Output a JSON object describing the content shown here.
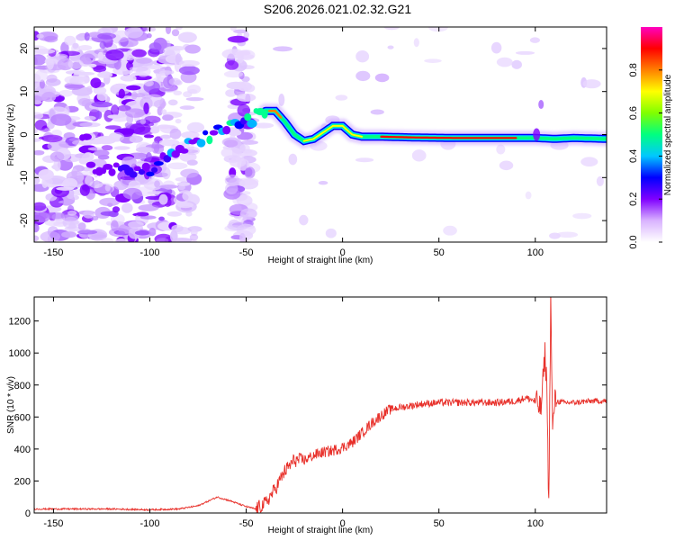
{
  "title": "S206.2026.021.02.32.G21",
  "chart_data": [
    {
      "type": "heatmap",
      "name": "spectrogram",
      "xlabel": "Height of straight line (km)",
      "ylabel": "Frequency (Hz)",
      "xlim": [
        -160,
        137
      ],
      "ylim": [
        -25,
        25
      ],
      "xticks": [
        -150,
        -100,
        -50,
        0,
        50,
        100
      ],
      "xtick_labels": [
        "-150",
        "-100",
        "-50",
        "0",
        "50",
        "100"
      ],
      "yticks": [
        20,
        10,
        0,
        -10,
        -20
      ],
      "ytick_labels": [
        "20",
        "10",
        "0",
        "-10",
        "-20"
      ],
      "colorbar": {
        "label": "Normalized spectral amplitude",
        "range": [
          0,
          1
        ],
        "ticks": [
          0.0,
          0.2,
          0.4,
          0.6,
          0.8
        ],
        "tick_labels": [
          "0.0",
          "0.2",
          "0.4",
          "0.6",
          "0.8"
        ],
        "colors": [
          "#ffffff",
          "#d9b3ff",
          "#8000ff",
          "#0000ff",
          "#00c8ff",
          "#00ff80",
          "#80ff00",
          "#ffff00",
          "#ff8000",
          "#ff0000",
          "#ff00c0"
        ]
      },
      "ridge_points": [
        {
          "x": -132,
          "f": -7.5
        },
        {
          "x": -120,
          "f": -7.5
        },
        {
          "x": -110,
          "f": -9
        },
        {
          "x": -100,
          "f": -8
        },
        {
          "x": -90,
          "f": -5
        },
        {
          "x": -80,
          "f": -2.5
        },
        {
          "x": -70,
          "f": -0.5
        },
        {
          "x": -60,
          "f": 1.5
        },
        {
          "x": -50,
          "f": 3
        },
        {
          "x": -40,
          "f": 5.5
        },
        {
          "x": -35,
          "f": 5.5
        },
        {
          "x": -30,
          "f": 3
        },
        {
          "x": -25,
          "f": 0
        },
        {
          "x": -20,
          "f": -1.5
        },
        {
          "x": -15,
          "f": -1
        },
        {
          "x": -10,
          "f": 0.5
        },
        {
          "x": -5,
          "f": 2
        },
        {
          "x": 0,
          "f": 2
        },
        {
          "x": 5,
          "f": 0
        },
        {
          "x": 10,
          "f": -0.5
        },
        {
          "x": 20,
          "f": -0.5
        },
        {
          "x": 40,
          "f": -0.7
        },
        {
          "x": 60,
          "f": -0.8
        },
        {
          "x": 80,
          "f": -0.8
        },
        {
          "x": 100,
          "f": -0.8
        },
        {
          "x": 110,
          "f": -1
        },
        {
          "x": 120,
          "f": -0.8
        },
        {
          "x": 137,
          "f": -1
        }
      ]
    },
    {
      "type": "line",
      "name": "snr",
      "xlabel": "Height of straight line (km)",
      "ylabel": "SNR (10 * v/v)",
      "xlim": [
        -160,
        137
      ],
      "ylim": [
        0,
        1350
      ],
      "xticks": [
        -150,
        -100,
        -50,
        0,
        50,
        100
      ],
      "xtick_labels": [
        "-150",
        "-100",
        "-50",
        "0",
        "50",
        "100"
      ],
      "yticks": [
        0,
        200,
        400,
        600,
        800,
        1000,
        1200
      ],
      "ytick_labels": [
        "0",
        "200",
        "400",
        "600",
        "800",
        "1000",
        "1200"
      ],
      "color": "#e8302a",
      "series": [
        {
          "name": "SNR",
          "x": [
            -160,
            -140,
            -120,
            -100,
            -85,
            -75,
            -65,
            -58,
            -50,
            -45,
            -40,
            -35,
            -30,
            -25,
            -20,
            -15,
            -10,
            -5,
            0,
            5,
            10,
            15,
            20,
            25,
            30,
            40,
            50,
            60,
            70,
            80,
            90,
            95,
            100,
            103,
            105,
            106,
            107,
            108,
            109,
            110,
            115,
            120,
            130,
            137
          ],
          "y": [
            25,
            25,
            25,
            20,
            25,
            45,
            100,
            75,
            40,
            25,
            60,
            150,
            260,
            330,
            330,
            360,
            380,
            390,
            410,
            440,
            500,
            560,
            610,
            650,
            660,
            680,
            690,
            690,
            690,
            690,
            700,
            720,
            700,
            650,
            1000,
            800,
            30,
            1350,
            500,
            700,
            690,
            690,
            700,
            700
          ]
        }
      ]
    }
  ]
}
